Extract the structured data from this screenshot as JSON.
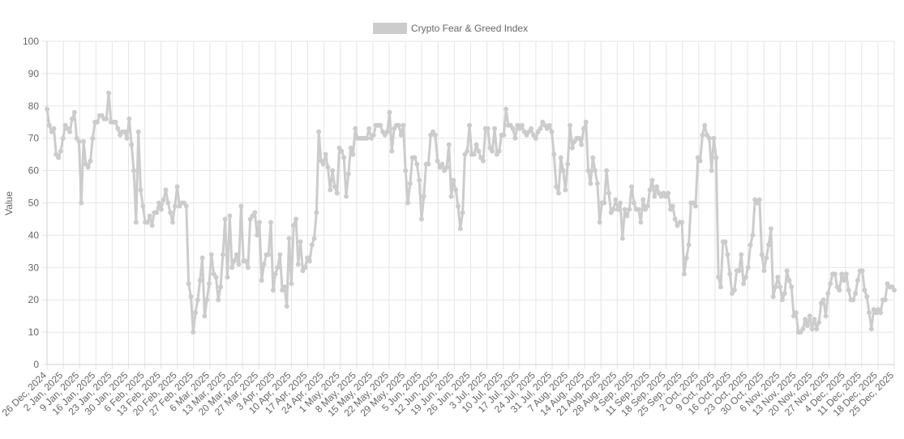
{
  "chart_data": {
    "type": "line",
    "title": "",
    "legend_position": "top-center",
    "grid": true,
    "series": [
      {
        "name": "Crypto Fear & Greed Index",
        "color": "#cccccc",
        "values": [
          79,
          74,
          72,
          73,
          65,
          64,
          66,
          70,
          74,
          73,
          72,
          76,
          78,
          70,
          69,
          50,
          69,
          62,
          61,
          63,
          70,
          75,
          75,
          77,
          77,
          76,
          76,
          84,
          75,
          75,
          75,
          73,
          71,
          72,
          72,
          70,
          76,
          68,
          60,
          44,
          72,
          54,
          49,
          44,
          44,
          46,
          43,
          47,
          47,
          50,
          48,
          51,
          54,
          50,
          47,
          44,
          49,
          55,
          49,
          50,
          50,
          49,
          25,
          21,
          10,
          16,
          20,
          26,
          33,
          15,
          20,
          25,
          34,
          28,
          27,
          20,
          24,
          34,
          45,
          27,
          46,
          30,
          32,
          34,
          31,
          49,
          32,
          32,
          30,
          45,
          46,
          47,
          40,
          44,
          26,
          31,
          34,
          34,
          44,
          23,
          28,
          30,
          34,
          23,
          24,
          18,
          39,
          25,
          43,
          45,
          31,
          38,
          29,
          30,
          33,
          32,
          37,
          39,
          47,
          72,
          63,
          62,
          65,
          61,
          54,
          60,
          55,
          53,
          67,
          66,
          64,
          52,
          59,
          67,
          65,
          73,
          70,
          70,
          70,
          70,
          70,
          73,
          70,
          71,
          74,
          74,
          74,
          72,
          71,
          72,
          78,
          66,
          73,
          74,
          74,
          71,
          74,
          60,
          50,
          56,
          64,
          64,
          62,
          57,
          45,
          52,
          62,
          62,
          71,
          72,
          71,
          63,
          61,
          62,
          60,
          61,
          68,
          52,
          57,
          54,
          49,
          42,
          47,
          65,
          66,
          74,
          65,
          65,
          68,
          66,
          64,
          63,
          73,
          73,
          67,
          66,
          73,
          65,
          66,
          71,
          71,
          79,
          74,
          74,
          73,
          70,
          74,
          73,
          74,
          72,
          71,
          72,
          73,
          71,
          70,
          72,
          73,
          75,
          74,
          73,
          74,
          72,
          65,
          55,
          53,
          64,
          60,
          54,
          62,
          74,
          67,
          69,
          70,
          70,
          68,
          73,
          75,
          60,
          56,
          64,
          60,
          56,
          44,
          50,
          50,
          60,
          53,
          47,
          48,
          51,
          48,
          50,
          39,
          48,
          46,
          48,
          55,
          50,
          48,
          48,
          44,
          51,
          48,
          49,
          54,
          57,
          52,
          55,
          53,
          52,
          53,
          52,
          53,
          48,
          49,
          45,
          43,
          44,
          44,
          28,
          33,
          37,
          50,
          50,
          49,
          64,
          63,
          71,
          74,
          71,
          70,
          60,
          70,
          64,
          27,
          24,
          38,
          38,
          34,
          28,
          22,
          23,
          29,
          29,
          34,
          25,
          27,
          30,
          37,
          40,
          51,
          50,
          51,
          34,
          29,
          33,
          37,
          42,
          21,
          24,
          27,
          24,
          20,
          22,
          29,
          26,
          24,
          15,
          16,
          10,
          10,
          11,
          14,
          12,
          15,
          11,
          14,
          11,
          13,
          19,
          20,
          15,
          22,
          25,
          28,
          28,
          24,
          23,
          28,
          26,
          28,
          23,
          20,
          20,
          22,
          26,
          29,
          29,
          23,
          21,
          16,
          11,
          17,
          16,
          17,
          16,
          20,
          20,
          25,
          24,
          24,
          23
        ]
      }
    ],
    "x_tick_labels": [
      "26 Dec, 2024",
      "2 Jan, 2025",
      "9 Jan, 2025",
      "16 Jan, 2025",
      "23 Jan, 2025",
      "30 Jan, 2025",
      "6 Feb, 2025",
      "13 Feb, 2025",
      "20 Feb, 2025",
      "27 Feb, 2025",
      "6 Mar, 2025",
      "13 Mar, 2025",
      "20 Mar, 2025",
      "27 Mar, 2025",
      "3 Apr, 2025",
      "10 Apr, 2025",
      "17 Apr, 2025",
      "24 Apr, 2025",
      "1 May, 2025",
      "8 May, 2025",
      "15 May, 2025",
      "22 May, 2025",
      "29 May, 2025",
      "5 Jun, 2025",
      "12 Jun, 2025",
      "19 Jun, 2025",
      "26 Jun, 2025",
      "3 Jul, 2025",
      "10 Jul, 2025",
      "17 Jul, 2025",
      "24 Jul, 2025",
      "31 Jul, 2025",
      "7 Aug, 2025",
      "14 Aug, 2025",
      "21 Aug, 2025",
      "28 Aug, 2025",
      "4 Sep, 2025",
      "11 Sep, 2025",
      "18 Sep, 2025",
      "25 Sep, 2025",
      "2 Oct, 2025",
      "9 Oct, 2025",
      "16 Oct, 2025",
      "23 Oct, 2025",
      "30 Oct, 2025",
      "6 Nov, 2025",
      "13 Nov, 2025",
      "20 Nov, 2025",
      "27 Nov, 2025",
      "4 Dec, 2025",
      "11 Dec, 2025",
      "18 Dec, 2025",
      "25 Dec, 2025"
    ],
    "xlabel": "",
    "ylabel": "Value",
    "ylim": [
      0,
      100
    ],
    "y_ticks": [
      0,
      10,
      20,
      30,
      40,
      50,
      60,
      70,
      80,
      90,
      100
    ]
  }
}
